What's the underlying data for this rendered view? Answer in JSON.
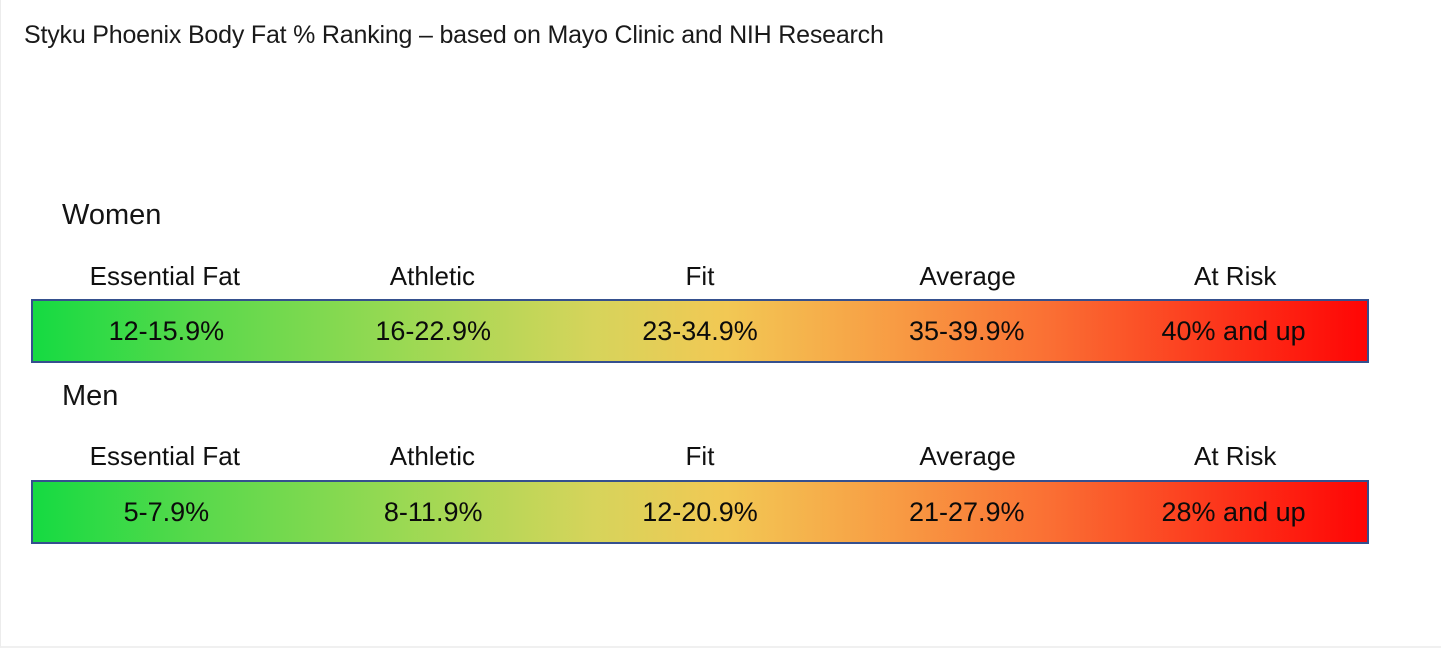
{
  "title": "Styku Phoenix Body Fat % Ranking – based on Mayo Clinic and NIH Research",
  "colors": {
    "bar_border": "#35508e",
    "gradient_start_green": "#15da42",
    "gradient_mid_yellow": "#f2c854",
    "gradient_end_red": "#ff0505",
    "text": "#111111"
  },
  "chart_data": {
    "type": "table",
    "title": "Styku Phoenix Body Fat % Ranking – based on Mayo Clinic and NIH Research",
    "categories": [
      "Essential Fat",
      "Athletic",
      "Fit",
      "Average",
      "At Risk"
    ],
    "series": [
      {
        "name": "Women",
        "values": [
          "12-15.9%",
          "16-22.9%",
          "23-34.9%",
          "35-39.9%",
          "40% and up"
        ]
      },
      {
        "name": "Men",
        "values": [
          "5-7.9%",
          "8-11.9%",
          "12-20.9%",
          "21-27.9%",
          "28% and up"
        ]
      }
    ],
    "layout": {
      "orientation": "horizontal",
      "color_scale": "green-to-red gradient left-to-right",
      "legend": "none",
      "grid": "off"
    }
  }
}
